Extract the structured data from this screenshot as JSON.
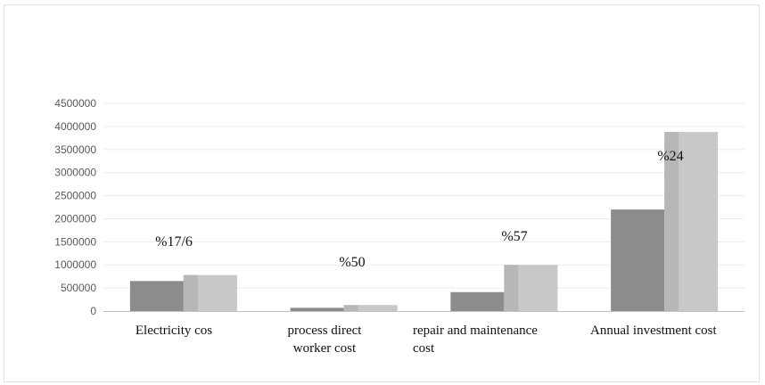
{
  "chart_data": {
    "type": "bar",
    "title": "",
    "xlabel": "",
    "ylabel": "",
    "ylim": [
      0,
      4500000
    ],
    "yticks": [
      0,
      500000,
      1000000,
      1500000,
      2000000,
      2500000,
      3000000,
      3500000,
      4000000,
      4500000
    ],
    "ytick_labels": [
      "0",
      "500000",
      "1000000",
      "1500000",
      "2000000",
      "2500000",
      "3000000",
      "3500000",
      "4000000",
      "4500000"
    ],
    "grid": true,
    "legend": "none",
    "categories": [
      [
        "Electricity cos"
      ],
      [
        "process direct",
        "worker cost"
      ],
      [
        "repair and maintenance",
        "cost"
      ],
      [
        "Annual investment cost"
      ]
    ],
    "series": [
      {
        "values": [
          650000,
          70000,
          410000,
          2200000
        ],
        "color": "#8c8c8c"
      },
      {
        "values": [
          780000,
          130000,
          1000000,
          3880000
        ],
        "color": "#c8c8c8"
      }
    ],
    "annotations": [
      "%17/6",
      "%50",
      "%57",
      "%24"
    ]
  }
}
